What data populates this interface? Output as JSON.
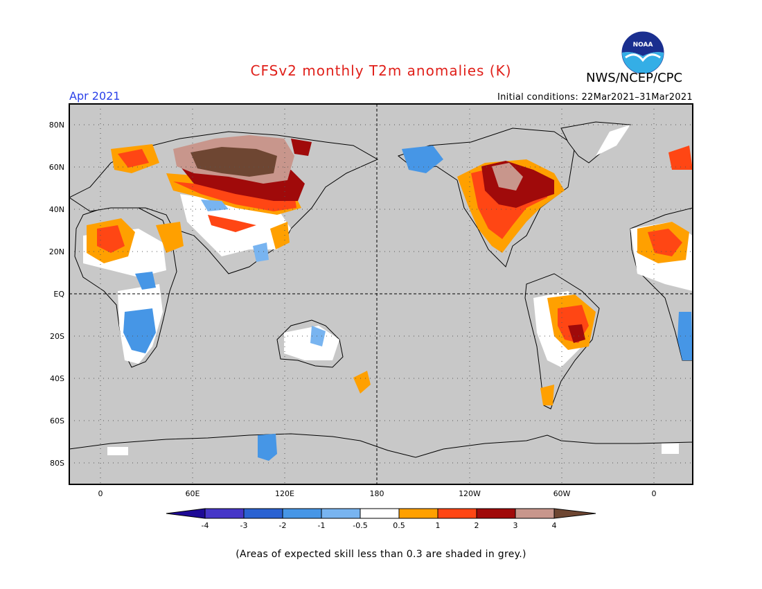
{
  "header": {
    "title": "CFSv2 monthly T2m anomalies (K)",
    "agency": "NWS/NCEP/CPC",
    "month": "Apr 2021",
    "initial_conditions": "Initial conditions: 22Mar2021–31Mar2021",
    "logo_text": "NOAA"
  },
  "map": {
    "lat_labels": [
      "80N",
      "60N",
      "40N",
      "20N",
      "EQ",
      "20S",
      "40S",
      "60S",
      "80S"
    ],
    "lon_labels": [
      "0",
      "60E",
      "120E",
      "180",
      "120W",
      "60W",
      "0"
    ],
    "colors": {
      "land_no_skill": "#c8c8c8",
      "near_zero": "#ffffff"
    }
  },
  "legend": {
    "tick_labels": [
      "-4",
      "-3",
      "-2",
      "-1",
      "-0.5",
      "0.5",
      "1",
      "2",
      "3",
      "4"
    ],
    "colors": [
      "#1e0a96",
      "#4636c8",
      "#2a62d2",
      "#4696e6",
      "#78b4f0",
      "#ffffff",
      "#ffa000",
      "#ff4614",
      "#a00a0a",
      "#c8968c",
      "#6e4632"
    ]
  },
  "footnote": "(Areas of expected skill less than 0.3 are shaded in grey.)"
}
